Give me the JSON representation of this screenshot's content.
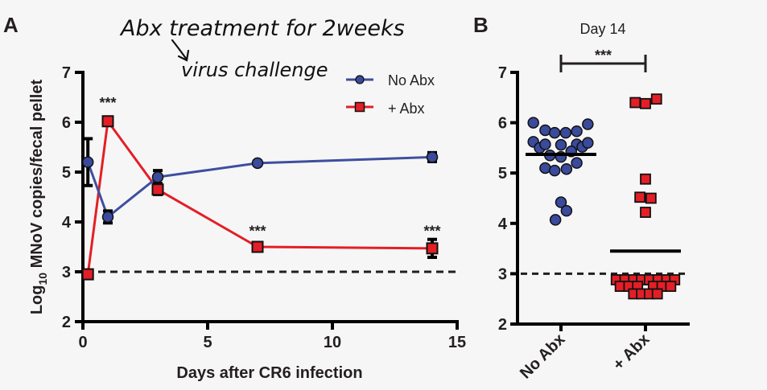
{
  "panels": {
    "a_letter": "A",
    "b_letter": "B"
  },
  "annotation": {
    "line1": "Abx treatment for 2weeks",
    "line2": "virus challenge",
    "arrow_icon": "arrow-down-icon"
  },
  "colors": {
    "no_abx": "#3a4a9c",
    "no_abx_line": "#3d4f9f",
    "plus_abx": "#e41e26",
    "axis": "#000000",
    "text": "#231f20",
    "background": "#f7f6f6"
  },
  "chart_data": [
    {
      "type": "line",
      "panel": "A",
      "title": "",
      "xlabel": "Days after CR6 infection",
      "ylabel_prefix": "Log",
      "ylabel_sub": "10",
      "ylabel_rest": " MNoV copies/fecal pellet",
      "xlim": [
        0,
        15
      ],
      "ylim": [
        2,
        7
      ],
      "xticks": [
        0,
        5,
        10,
        15
      ],
      "xtick_labels": [
        "0",
        "5",
        "10",
        "15"
      ],
      "yticks": [
        2,
        3,
        4,
        5,
        6,
        7
      ],
      "ytick_labels": [
        "2",
        "3",
        "4",
        "5",
        "6",
        "7"
      ],
      "legend_position": "top-right",
      "reference_line": {
        "y": 3,
        "style": "dashed"
      },
      "series": [
        {
          "name": "No Abx",
          "marker": "circle",
          "x": [
            0.2,
            1,
            3,
            7,
            14
          ],
          "y": [
            5.2,
            4.1,
            4.9,
            5.18,
            5.3
          ],
          "err": [
            0.47,
            0.12,
            0.13,
            0.04,
            0.09
          ]
        },
        {
          "name": "+ Abx",
          "marker": "square",
          "x": [
            0.2,
            1,
            3,
            7,
            14
          ],
          "y": [
            2.95,
            6.02,
            4.65,
            3.5,
            3.47
          ],
          "err": [
            0.03,
            0.05,
            0.1,
            0.07,
            0.18
          ]
        }
      ],
      "annotations": [
        {
          "text": "***",
          "x": 1,
          "y": 6.45
        },
        {
          "text": "***",
          "x": 7,
          "y": 3.88
        },
        {
          "text": "***",
          "x": 14,
          "y": 3.88
        }
      ],
      "grid": false
    },
    {
      "type": "scatter",
      "panel": "B",
      "title": "Day 14",
      "xlabel": "",
      "ylabel": "",
      "categories": [
        "No Abx",
        "+ Abx"
      ],
      "ylim": [
        2,
        7
      ],
      "yticks": [
        2,
        3,
        4,
        5,
        6,
        7
      ],
      "ytick_labels": [
        "2",
        "3",
        "4",
        "5",
        "6",
        "7"
      ],
      "reference_line": {
        "y": 3,
        "style": "dashed"
      },
      "significance": {
        "text": "***",
        "between": [
          "No Abx",
          "+ Abx"
        ]
      },
      "series": [
        {
          "name": "No Abx",
          "marker": "circle",
          "mean": 5.37,
          "points": [
            {
              "dx": -0.35,
              "y": 6.0
            },
            {
              "dx": -0.2,
              "y": 5.85
            },
            {
              "dx": -0.08,
              "y": 5.8
            },
            {
              "dx": 0.06,
              "y": 5.8
            },
            {
              "dx": 0.2,
              "y": 5.83
            },
            {
              "dx": 0.34,
              "y": 5.97
            },
            {
              "dx": -0.35,
              "y": 5.62
            },
            {
              "dx": -0.27,
              "y": 5.5
            },
            {
              "dx": -0.2,
              "y": 5.57
            },
            {
              "dx": 0.0,
              "y": 5.56
            },
            {
              "dx": 0.2,
              "y": 5.57
            },
            {
              "dx": 0.27,
              "y": 5.52
            },
            {
              "dx": 0.34,
              "y": 5.6
            },
            {
              "dx": -0.14,
              "y": 5.35
            },
            {
              "dx": 0.0,
              "y": 5.32
            },
            {
              "dx": 0.13,
              "y": 5.43
            },
            {
              "dx": -0.2,
              "y": 5.1
            },
            {
              "dx": -0.08,
              "y": 5.05
            },
            {
              "dx": 0.07,
              "y": 5.08
            },
            {
              "dx": 0.2,
              "y": 5.2
            },
            {
              "dx": 0.0,
              "y": 4.42
            },
            {
              "dx": 0.07,
              "y": 4.25
            },
            {
              "dx": -0.07,
              "y": 4.07
            }
          ]
        },
        {
          "name": "+ Abx",
          "marker": "square",
          "mean": 3.45,
          "points": [
            {
              "dx": -0.13,
              "y": 6.4
            },
            {
              "dx": 0.0,
              "y": 6.38
            },
            {
              "dx": 0.14,
              "y": 6.47
            },
            {
              "dx": 0.0,
              "y": 4.88
            },
            {
              "dx": -0.07,
              "y": 4.52
            },
            {
              "dx": 0.07,
              "y": 4.5
            },
            {
              "dx": 0.0,
              "y": 4.22
            },
            {
              "dx": -0.37,
              "y": 2.88
            },
            {
              "dx": -0.26,
              "y": 2.88
            },
            {
              "dx": -0.15,
              "y": 2.88
            },
            {
              "dx": -0.05,
              "y": 2.88
            },
            {
              "dx": 0.05,
              "y": 2.88
            },
            {
              "dx": 0.16,
              "y": 2.88
            },
            {
              "dx": 0.27,
              "y": 2.88
            },
            {
              "dx": 0.37,
              "y": 2.88
            },
            {
              "dx": -0.32,
              "y": 2.75
            },
            {
              "dx": -0.21,
              "y": 2.75
            },
            {
              "dx": -0.1,
              "y": 2.75
            },
            {
              "dx": 0.1,
              "y": 2.75
            },
            {
              "dx": 0.21,
              "y": 2.75
            },
            {
              "dx": 0.32,
              "y": 2.75
            },
            {
              "dx": -0.15,
              "y": 2.6
            },
            {
              "dx": -0.05,
              "y": 2.6
            },
            {
              "dx": 0.05,
              "y": 2.6
            },
            {
              "dx": 0.15,
              "y": 2.6
            }
          ]
        }
      ]
    }
  ]
}
